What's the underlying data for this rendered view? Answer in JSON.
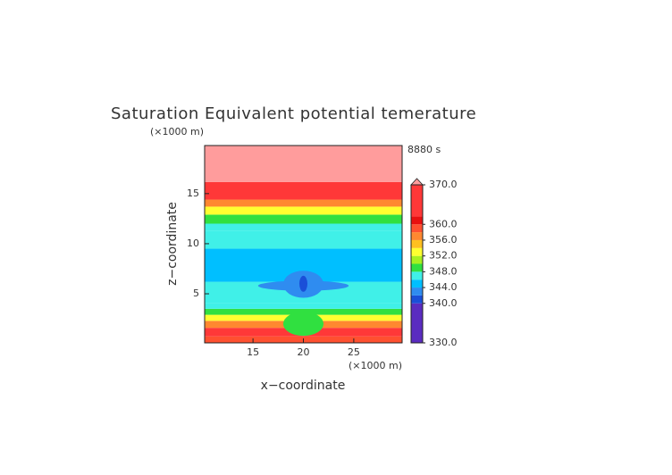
{
  "chart_data": {
    "type": "contour",
    "title": "Saturation Equivalent potential temerature",
    "x_label": "x−coordinate",
    "y_label": "z−coordinate",
    "x_unit": "(×1000 m)",
    "y_unit": "(×1000 m)",
    "time_label": "8880 s",
    "xlim": [
      10.2,
      29.8
    ],
    "ylim": [
      0.1,
      19.8
    ],
    "xticks": [
      15,
      20,
      25
    ],
    "yticks": [
      5,
      10,
      15
    ],
    "levels": [
      330,
      340,
      342,
      344,
      346,
      348,
      350,
      352,
      354,
      356,
      358,
      360,
      362,
      370
    ],
    "colors": [
      "#5a2cc0",
      "#1a4fd8",
      "#2f8cf0",
      "#00bfff",
      "#40f0e8",
      "#30e040",
      "#a8f020",
      "#ffff30",
      "#ffc020",
      "#ff8830",
      "#ff5030",
      "#e81010",
      "#ff3838"
    ],
    "extend_color": "#ff9c9c",
    "colorbar_ticks": [
      {
        "value": 330,
        "label": "330.0"
      },
      {
        "value": 340,
        "label": "340.0"
      },
      {
        "value": 344,
        "label": "344.0"
      },
      {
        "value": 348,
        "label": "348.0"
      },
      {
        "value": 352,
        "label": "352.0"
      },
      {
        "value": 356,
        "label": "356.0"
      },
      {
        "value": 360,
        "label": "360.0"
      },
      {
        "value": 370,
        "label": "370.0"
      }
    ],
    "profile": {
      "z": [
        0.3,
        1.2,
        2.0,
        2.6,
        3.2,
        3.8,
        4.4,
        8,
        11.0,
        11.6,
        12.4,
        13.4,
        14.0,
        14.8,
        17.5
      ],
      "values": [
        358,
        362,
        356,
        353,
        349,
        347,
        346,
        345,
        346,
        347,
        349,
        353,
        357,
        362,
        372
      ]
    },
    "anomalies": [
      {
        "x": [
          18,
          22
        ],
        "z": [
          0.8,
          3.2
        ],
        "value": 349
      },
      {
        "x": [
          15.5,
          24.5
        ],
        "z": [
          5.3,
          6.3
        ],
        "value": 343
      },
      {
        "x": [
          18,
          22
        ],
        "z": [
          4.6,
          7.3
        ],
        "value": 343
      },
      {
        "x": [
          19.6,
          20.4
        ],
        "z": [
          5.2,
          6.8
        ],
        "value": 341
      }
    ]
  }
}
